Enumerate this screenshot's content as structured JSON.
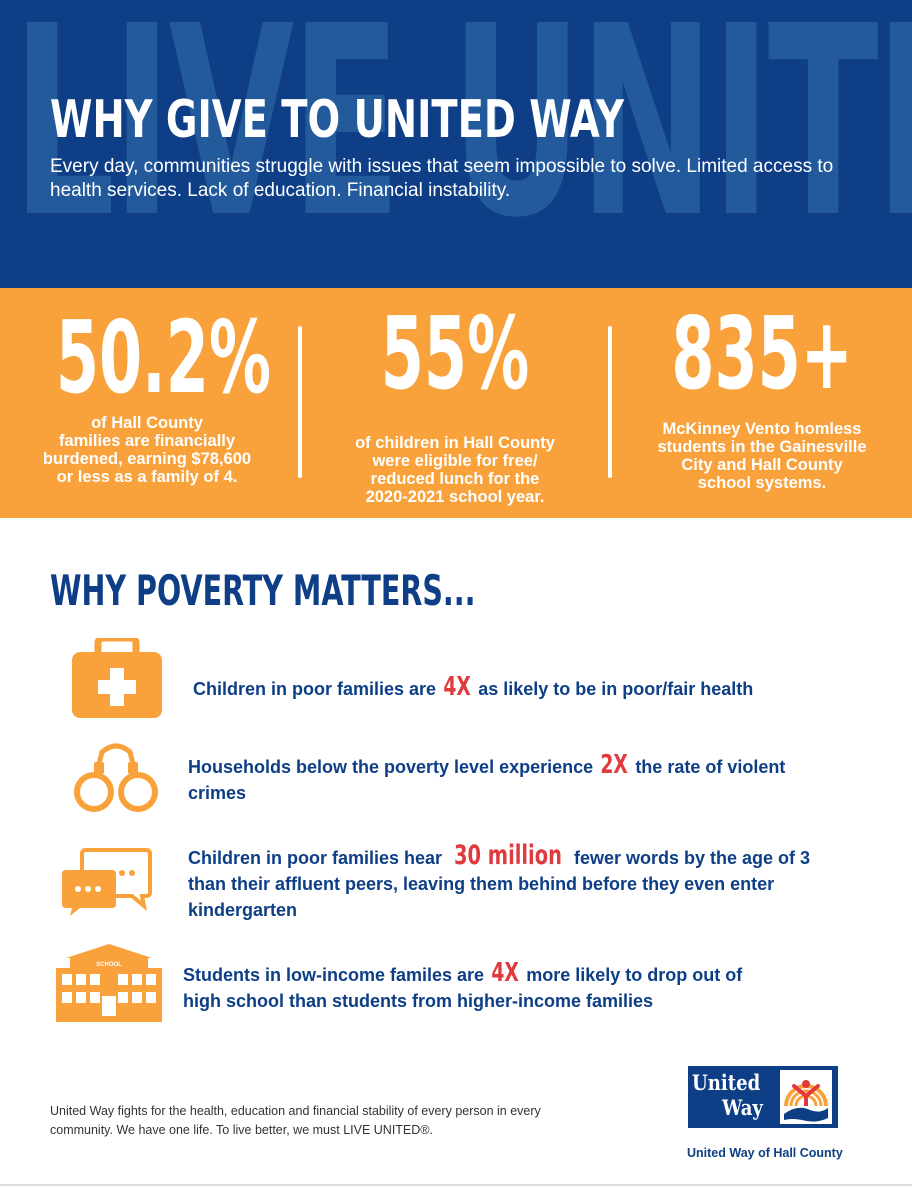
{
  "hero": {
    "watermark": "LIVE UNITED",
    "title": "WHY GIVE TO UNITED WAY",
    "text": "Every day, communities struggle with issues that seem impossible to solve. Limited access to health services. Lack of education. Financial instability."
  },
  "stats": [
    {
      "number": "50.2%",
      "caption_lines": [
        "of Hall County",
        "families are financially",
        "burdened, earning $78,600",
        "or less as a family of 4."
      ]
    },
    {
      "number": "55%",
      "caption_lines": [
        "of children in Hall County",
        "were eligible for free/",
        "reduced lunch for the",
        "2020-2021 school year."
      ]
    },
    {
      "number": "835+",
      "caption_lines": [
        "McKinney Vento homless",
        "students in the Gainesville",
        "City and Hall County",
        "school systems."
      ]
    }
  ],
  "section": {
    "title": "WHY POVERTY MATTERS..."
  },
  "facts": [
    {
      "icon": "medical-kit-icon",
      "before": "Children in poor families are",
      "highlight": "4X",
      "after": "as likely to be in poor/fair health"
    },
    {
      "icon": "handcuffs-icon",
      "before": "Households below the poverty level experience",
      "highlight": "2X",
      "after": "the rate of violent crimes"
    },
    {
      "icon": "chat-bubbles-icon",
      "before": "Children in poor families hear",
      "highlight": "30 million",
      "after": "fewer words by the age of 3 than their affluent peers, leaving them behind before they even enter kindergarten"
    },
    {
      "icon": "school-building-icon",
      "icon_label": "SCHOOL",
      "before": "Students in low-income familes are",
      "highlight": "4X",
      "after": "more likely to drop out of high school than students from higher-income families"
    }
  ],
  "footer": {
    "text": "United Way fights for the health, education and financial stability of every person in every community. We have one life. To live better, we must LIVE UNITED®.",
    "logo_line1": "United",
    "logo_line2": "Way",
    "logo_caption": "United Way of Hall County"
  },
  "colors": {
    "navy": "#0d3e86",
    "orange": "#f9a23c",
    "highlight_red": "#e03a3e"
  }
}
